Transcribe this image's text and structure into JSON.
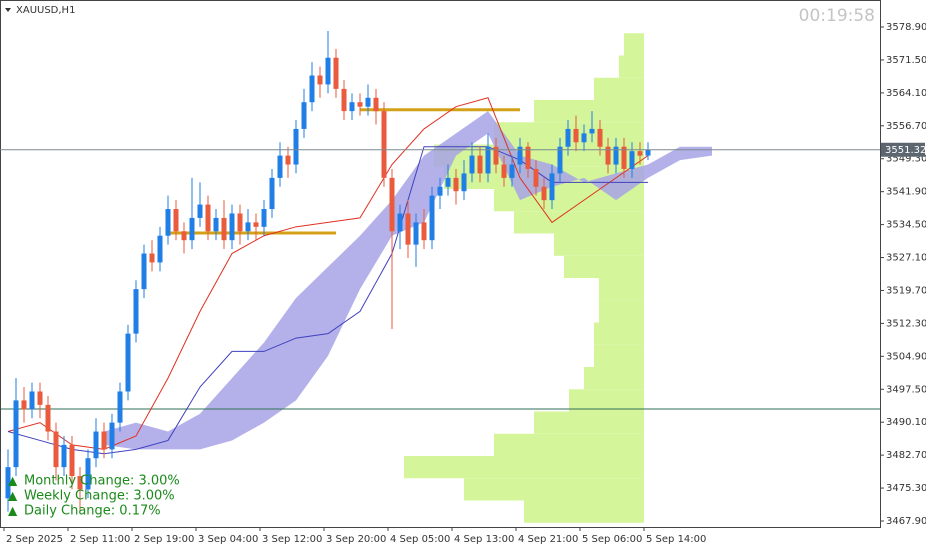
{
  "chart_data": {
    "type": "candlestick",
    "title": "XAUUSD,H1",
    "timer": "00:19:58",
    "up_color": "#1f7fe6",
    "down_color": "#ea5a3c",
    "ylim": [
      3466.55,
      3584.97
    ],
    "yticks": [
      {
        "value": 3578.9,
        "label": "3578.90"
      },
      {
        "value": 3571.5,
        "label": "3571.50"
      },
      {
        "value": 3564.1,
        "label": "3564.10"
      },
      {
        "value": 3556.7,
        "label": "3556.70"
      },
      {
        "value": 3549.3,
        "label": "3549.30"
      },
      {
        "value": 3541.9,
        "label": "3541.90"
      },
      {
        "value": 3534.5,
        "label": "3534.50"
      },
      {
        "value": 3527.1,
        "label": "3527.10"
      },
      {
        "value": 3519.7,
        "label": "3519.70"
      },
      {
        "value": 3512.3,
        "label": "3512.30"
      },
      {
        "value": 3504.9,
        "label": "3504.90"
      },
      {
        "value": 3497.5,
        "label": "3497.50"
      },
      {
        "value": 3490.1,
        "label": "3490.10"
      },
      {
        "value": 3482.7,
        "label": "3482.70"
      },
      {
        "value": 3475.3,
        "label": "3475.30"
      },
      {
        "value": 3467.9,
        "label": "3467.90"
      }
    ],
    "xticks": [
      {
        "value": 0,
        "label": "2 Sep 2025"
      },
      {
        "value": 8,
        "label": "2 Sep 11:00"
      },
      {
        "value": 16,
        "label": "2 Sep 19:00"
      },
      {
        "value": 24,
        "label": "3 Sep 04:00"
      },
      {
        "value": 32,
        "label": "3 Sep 12:00"
      },
      {
        "value": 40,
        "label": "3 Sep 20:00"
      },
      {
        "value": 48,
        "label": "4 Sep 05:00"
      },
      {
        "value": 56,
        "label": "4 Sep 13:00"
      },
      {
        "value": 64,
        "label": "4 Sep 21:00"
      },
      {
        "value": 72,
        "label": "5 Sep 06:00"
      },
      {
        "value": 80,
        "label": "5 Sep 14:00"
      }
    ],
    "open": [
      3473,
      3480,
      3495,
      3493,
      3497,
      3494,
      3488,
      3480,
      3485,
      3478,
      3475,
      3482,
      3488,
      3484,
      3490,
      3497,
      3510,
      3520,
      3528,
      3526,
      3532,
      3538,
      3533,
      3531,
      3536,
      3539,
      3533,
      3536,
      3531,
      3537,
      3533,
      3535,
      3534,
      3538,
      3545,
      3550,
      3548,
      3556,
      3562,
      3568,
      3566,
      3572,
      3565,
      3560,
      3562,
      3561,
      3563,
      3560,
      3545,
      3533,
      3537,
      3530,
      3535,
      3531,
      3541,
      3543,
      3545,
      3542,
      3546,
      3550,
      3546,
      3552,
      3548,
      3545,
      3548,
      3552,
      3547,
      3543,
      3540,
      3546,
      3552,
      3556,
      3553,
      3555,
      3556,
      3552,
      3548,
      3552,
      3547,
      3551,
      3550
    ],
    "high": [
      3484,
      3500,
      3498,
      3499,
      3499,
      3496,
      3490,
      3487,
      3487,
      3480,
      3484,
      3491,
      3490,
      3492,
      3499,
      3512,
      3522,
      3530,
      3531,
      3534,
      3541,
      3540,
      3535,
      3545,
      3544,
      3541,
      3538,
      3540,
      3539,
      3539,
      3538,
      3537,
      3540,
      3547,
      3553,
      3552,
      3558,
      3565,
      3571,
      3570,
      3578,
      3574,
      3567,
      3564,
      3564,
      3566,
      3565,
      3562,
      3547,
      3539,
      3540,
      3537,
      3538,
      3543,
      3545,
      3548,
      3547,
      3549,
      3553,
      3552,
      3555,
      3554,
      3550,
      3550,
      3554,
      3553,
      3549,
      3545,
      3548,
      3554,
      3558,
      3559,
      3557,
      3560,
      3558,
      3554,
      3554,
      3554,
      3553,
      3553,
      3553
    ],
    "low": [
      3470,
      3478,
      3490,
      3491,
      3491,
      3486,
      3477,
      3478,
      3475,
      3470,
      3473,
      3480,
      3482,
      3482,
      3488,
      3495,
      3508,
      3518,
      3524,
      3524,
      3530,
      3531,
      3528,
      3529,
      3534,
      3531,
      3531,
      3529,
      3529,
      3530,
      3531,
      3531,
      3532,
      3536,
      3543,
      3545,
      3546,
      3554,
      3560,
      3563,
      3564,
      3563,
      3558,
      3558,
      3559,
      3559,
      3557,
      3543,
      3511,
      3529,
      3527,
      3525,
      3529,
      3529,
      3538,
      3541,
      3539,
      3540,
      3544,
      3544,
      3544,
      3546,
      3543,
      3543,
      3546,
      3545,
      3541,
      3538,
      3538,
      3544,
      3550,
      3551,
      3551,
      3553,
      3550,
      3546,
      3546,
      3545,
      3545,
      3548,
      3549
    ],
    "close": [
      3480,
      3495,
      3493,
      3497,
      3494,
      3488,
      3480,
      3485,
      3478,
      3475,
      3482,
      3488,
      3484,
      3490,
      3497,
      3510,
      3520,
      3528,
      3526,
      3532,
      3538,
      3533,
      3531,
      3536,
      3539,
      3533,
      3536,
      3531,
      3537,
      3533,
      3535,
      3534,
      3538,
      3545,
      3550,
      3548,
      3556,
      3562,
      3568,
      3566,
      3572,
      3565,
      3560,
      3562,
      3561,
      3563,
      3560,
      3545,
      3533,
      3537,
      3530,
      3535,
      3531,
      3541,
      3543,
      3545,
      3542,
      3546,
      3550,
      3546,
      3552,
      3548,
      3545,
      3548,
      3552,
      3547,
      3543,
      3540,
      3546,
      3552,
      3556,
      3553,
      3555,
      3556,
      3552,
      3548,
      3552,
      3547,
      3551,
      3550,
      3551.32
    ],
    "lines": [
      {
        "color": "#e03020",
        "x": [
          0,
          4,
          8,
          12,
          16,
          20,
          24,
          28,
          32,
          36,
          40,
          44,
          48,
          52,
          56,
          60,
          64,
          68,
          72,
          76,
          80
        ],
        "values": [
          3488,
          3490,
          3485,
          3484,
          3487,
          3500,
          3515,
          3528,
          3532,
          3534,
          3535,
          3536,
          3548,
          3556,
          3561,
          3563,
          3545,
          3535,
          3540,
          3545,
          3550
        ]
      },
      {
        "color": "#4040c0",
        "x": [
          0,
          4,
          8,
          12,
          16,
          20,
          24,
          28,
          32,
          36,
          40,
          44,
          48,
          52,
          56,
          60,
          64,
          68,
          72,
          76,
          80
        ],
        "values": [
          3488,
          3486,
          3484,
          3483,
          3484,
          3486,
          3498,
          3506,
          3506,
          3509,
          3510,
          3515,
          3528,
          3552,
          3552,
          3552,
          3549,
          3544,
          3544,
          3544,
          3544
        ]
      }
    ],
    "cloud": {
      "color": "#a7a3e6",
      "x": [
        12,
        16,
        20,
        24,
        28,
        32,
        36,
        40,
        44,
        48,
        52,
        56,
        60,
        64,
        68,
        72,
        76,
        80,
        84,
        88
      ],
      "span_a": [
        3488,
        3490,
        3488,
        3492,
        3500,
        3508,
        3518,
        3525,
        3532,
        3540,
        3550,
        3555,
        3560,
        3550,
        3548,
        3544,
        3546,
        3548,
        3552,
        3552
      ],
      "span_b": [
        3485,
        3484,
        3484,
        3484,
        3486,
        3490,
        3495,
        3505,
        3520,
        3532,
        3535,
        3550,
        3555,
        3540,
        3543,
        3545,
        3540,
        3545,
        3549,
        3550
      ]
    },
    "volume_profile": {
      "color": "#d4f59a",
      "end": 80,
      "levels": [
        3575,
        3570,
        3565,
        3560,
        3555,
        3550,
        3545,
        3540,
        3535,
        3530,
        3525,
        3520,
        3515,
        3510,
        3505,
        3500,
        3495,
        3490,
        3485,
        3480,
        3475,
        3470
      ],
      "volumes": [
        20,
        25,
        50,
        110,
        150,
        210,
        200,
        150,
        130,
        90,
        80,
        45,
        45,
        50,
        50,
        60,
        75,
        110,
        150,
        240,
        180,
        120
      ]
    },
    "levels": [
      {
        "value": 3532.6,
        "from": 20,
        "to": 41,
        "color": "#d4a017"
      },
      {
        "value": 3560.3,
        "from": 44,
        "to": 64,
        "color": "#d4a017"
      }
    ],
    "hlines": [
      {
        "value": 3493.06,
        "color": "#2f6f55"
      }
    ],
    "current_price": {
      "value": 3551.32,
      "label": "3551.32"
    },
    "stats": [
      "Monthly Change: 3.00%",
      "Weekly Change: 3.00%",
      "Daily Change: 0.17%"
    ]
  }
}
